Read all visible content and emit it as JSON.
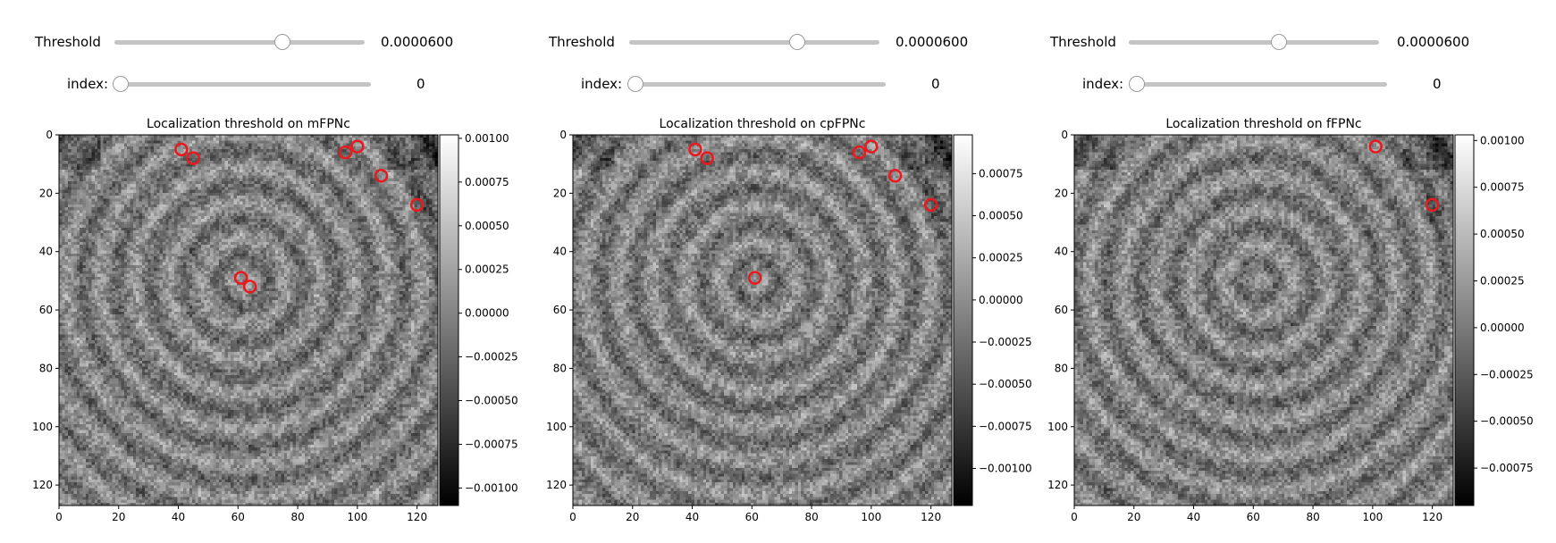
{
  "panels": [
    {
      "threshold": {
        "label": "Threshold",
        "value_text": "0.0000600",
        "slider_fraction": 0.67
      },
      "index": {
        "label": "index:",
        "value_text": "0",
        "slider_fraction": 0.0
      },
      "chart_data": {
        "type": "heatmap",
        "title": "Localization threshold on mFPNc",
        "xlim": [
          0,
          127
        ],
        "ylim": [
          127,
          0
        ],
        "x_ticks": [
          "0",
          "20",
          "40",
          "60",
          "80",
          "100",
          "120"
        ],
        "y_ticks": [
          "0",
          "20",
          "40",
          "60",
          "80",
          "100",
          "120"
        ],
        "colorbar": {
          "range": [
            -0.0011,
            0.00102
          ],
          "ticks": [
            "0.00100",
            "0.00075",
            "0.00050",
            "0.00025",
            "0.00000",
            "−0.00025",
            "−0.00050",
            "−0.00075",
            "−0.00100"
          ]
        },
        "markers": [
          {
            "x": 41,
            "y": 5
          },
          {
            "x": 45,
            "y": 8
          },
          {
            "x": 96,
            "y": 6
          },
          {
            "x": 100,
            "y": 4
          },
          {
            "x": 108,
            "y": 14
          },
          {
            "x": 120,
            "y": 24
          },
          {
            "x": 61,
            "y": 49
          },
          {
            "x": 64,
            "y": 52
          }
        ],
        "marker_color": "#e8191f"
      }
    },
    {
      "threshold": {
        "label": "Threshold",
        "value_text": "0.0000600",
        "slider_fraction": 0.67
      },
      "index": {
        "label": "index:",
        "value_text": "0",
        "slider_fraction": 0.0
      },
      "chart_data": {
        "type": "heatmap",
        "title": "Localization threshold on cpFPNc",
        "xlim": [
          0,
          127
        ],
        "ylim": [
          127,
          0
        ],
        "x_ticks": [
          "0",
          "20",
          "40",
          "60",
          "80",
          "100",
          "120"
        ],
        "y_ticks": [
          "0",
          "20",
          "40",
          "60",
          "80",
          "100",
          "120"
        ],
        "colorbar": {
          "range": [
            -0.00122,
            0.00098
          ],
          "ticks": [
            "0.00075",
            "0.00050",
            "0.00025",
            "0.00000",
            "−0.00025",
            "−0.00050",
            "−0.00075",
            "−0.00100"
          ]
        },
        "markers": [
          {
            "x": 41,
            "y": 5
          },
          {
            "x": 45,
            "y": 8
          },
          {
            "x": 96,
            "y": 6
          },
          {
            "x": 100,
            "y": 4
          },
          {
            "x": 108,
            "y": 14
          },
          {
            "x": 120,
            "y": 24
          },
          {
            "x": 61,
            "y": 49
          }
        ],
        "marker_color": "#e8191f"
      }
    },
    {
      "threshold": {
        "label": "Threshold",
        "value_text": "0.0000600",
        "slider_fraction": 0.6
      },
      "index": {
        "label": "index:",
        "value_text": "0",
        "slider_fraction": 0.0
      },
      "chart_data": {
        "type": "heatmap",
        "title": "Localization threshold on fFPNc",
        "xlim": [
          0,
          127
        ],
        "ylim": [
          127,
          0
        ],
        "x_ticks": [
          "0",
          "20",
          "40",
          "60",
          "80",
          "100",
          "120"
        ],
        "y_ticks": [
          "0",
          "20",
          "40",
          "60",
          "80",
          "100",
          "120"
        ],
        "colorbar": {
          "range": [
            -0.00095,
            0.00103
          ],
          "ticks": [
            "0.00100",
            "0.00075",
            "0.00050",
            "0.00025",
            "0.00000",
            "−0.00025",
            "−0.00050",
            "−0.00075"
          ]
        },
        "markers": [
          {
            "x": 101,
            "y": 4
          },
          {
            "x": 120,
            "y": 24
          }
        ],
        "marker_color": "#e8191f"
      }
    }
  ]
}
